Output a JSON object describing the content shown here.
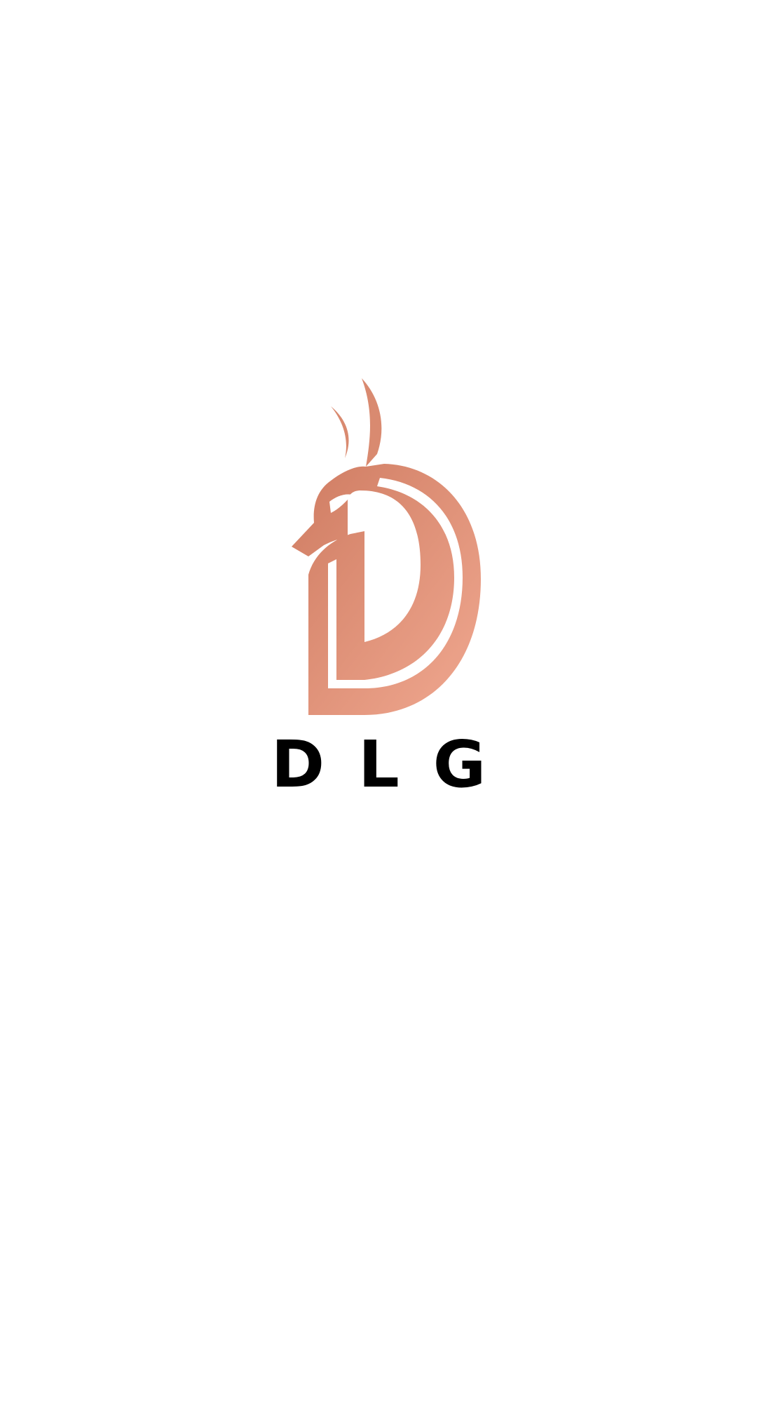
{
  "app": {
    "wordmark": "DLG",
    "logo_icon": "dragon-d-logo-icon",
    "colors": {
      "background": "#ffffff",
      "logo_primary": "#d98a70",
      "logo_light": "#eba48b",
      "wordmark": "#000000"
    }
  }
}
